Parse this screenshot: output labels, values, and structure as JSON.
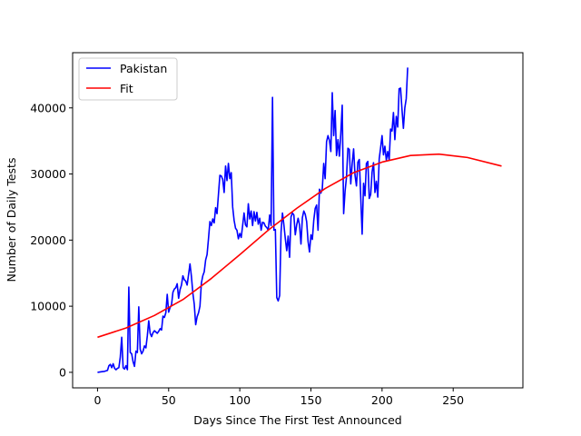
{
  "chart_data": {
    "type": "line",
    "title": "",
    "xlabel": "Days Since The First Test Announced",
    "ylabel": "Number of Daily Tests",
    "xlim": [
      -17.5,
      299
    ],
    "ylim": [
      -2350,
      48350
    ],
    "xticks": [
      0,
      50,
      100,
      150,
      200,
      250
    ],
    "yticks": [
      0,
      10000,
      20000,
      30000,
      40000
    ],
    "grid": false,
    "legend_position": "top-left",
    "series": [
      {
        "name": "Pakistan",
        "color": "#0000ff",
        "points": [
          [
            0,
            0
          ],
          [
            3,
            100
          ],
          [
            5,
            150
          ],
          [
            7,
            300
          ],
          [
            8,
            1000
          ],
          [
            9,
            1200
          ],
          [
            10,
            700
          ],
          [
            11,
            1300
          ],
          [
            12,
            600
          ],
          [
            13,
            400
          ],
          [
            14,
            600
          ],
          [
            15,
            700
          ],
          [
            16,
            2300
          ],
          [
            17,
            5300
          ],
          [
            18,
            700
          ],
          [
            19,
            500
          ],
          [
            20,
            1000
          ],
          [
            21,
            400
          ],
          [
            22,
            12900
          ],
          [
            23,
            3000
          ],
          [
            24,
            2800
          ],
          [
            25,
            1600
          ],
          [
            26,
            900
          ],
          [
            27,
            3200
          ],
          [
            28,
            3000
          ],
          [
            29,
            9900
          ],
          [
            30,
            3500
          ],
          [
            31,
            2800
          ],
          [
            32,
            3200
          ],
          [
            33,
            4000
          ],
          [
            34,
            3700
          ],
          [
            35,
            5500
          ],
          [
            36,
            7800
          ],
          [
            37,
            5900
          ],
          [
            38,
            5400
          ],
          [
            39,
            6000
          ],
          [
            40,
            6300
          ],
          [
            41,
            6100
          ],
          [
            42,
            5900
          ],
          [
            43,
            6200
          ],
          [
            44,
            6600
          ],
          [
            45,
            6400
          ],
          [
            46,
            8500
          ],
          [
            47,
            8300
          ],
          [
            48,
            9000
          ],
          [
            49,
            11800
          ],
          [
            50,
            9100
          ],
          [
            51,
            9800
          ],
          [
            52,
            10200
          ],
          [
            53,
            12100
          ],
          [
            54,
            12600
          ],
          [
            55,
            12800
          ],
          [
            56,
            13400
          ],
          [
            57,
            11200
          ],
          [
            58,
            12500
          ],
          [
            59,
            13200
          ],
          [
            60,
            14600
          ],
          [
            61,
            14000
          ],
          [
            62,
            13800
          ],
          [
            63,
            13200
          ],
          [
            64,
            14800
          ],
          [
            65,
            16400
          ],
          [
            66,
            14500
          ],
          [
            67,
            12000
          ],
          [
            68,
            10300
          ],
          [
            69,
            7200
          ],
          [
            70,
            8400
          ],
          [
            71,
            9000
          ],
          [
            72,
            10000
          ],
          [
            73,
            13500
          ],
          [
            74,
            14600
          ],
          [
            75,
            15200
          ],
          [
            76,
            17000
          ],
          [
            77,
            17800
          ],
          [
            78,
            20200
          ],
          [
            79,
            22800
          ],
          [
            80,
            22200
          ],
          [
            81,
            23200
          ],
          [
            82,
            22600
          ],
          [
            83,
            24900
          ],
          [
            84,
            24000
          ],
          [
            85,
            26900
          ],
          [
            86,
            29800
          ],
          [
            87,
            29700
          ],
          [
            88,
            29200
          ],
          [
            89,
            27200
          ],
          [
            90,
            31200
          ],
          [
            91,
            29000
          ],
          [
            92,
            31600
          ],
          [
            93,
            29300
          ],
          [
            94,
            30200
          ],
          [
            95,
            25000
          ],
          [
            96,
            23000
          ],
          [
            97,
            21800
          ],
          [
            98,
            21500
          ],
          [
            99,
            20200
          ],
          [
            100,
            21000
          ],
          [
            101,
            20400
          ],
          [
            102,
            22200
          ],
          [
            103,
            24100
          ],
          [
            104,
            22300
          ],
          [
            105,
            22000
          ],
          [
            106,
            25500
          ],
          [
            107,
            23200
          ],
          [
            108,
            24400
          ],
          [
            109,
            22200
          ],
          [
            110,
            24300
          ],
          [
            111,
            22900
          ],
          [
            112,
            24200
          ],
          [
            113,
            22400
          ],
          [
            114,
            23300
          ],
          [
            115,
            21500
          ],
          [
            116,
            22700
          ],
          [
            117,
            22600
          ],
          [
            118,
            22100
          ],
          [
            119,
            21900
          ],
          [
            120,
            21500
          ],
          [
            121,
            23800
          ],
          [
            122,
            22200
          ],
          [
            123,
            41600
          ],
          [
            124,
            21500
          ],
          [
            125,
            21600
          ],
          [
            126,
            11300
          ],
          [
            127,
            10800
          ],
          [
            128,
            11600
          ],
          [
            129,
            21200
          ],
          [
            130,
            24100
          ],
          [
            131,
            22300
          ],
          [
            132,
            20200
          ],
          [
            133,
            18400
          ],
          [
            134,
            20600
          ],
          [
            135,
            17400
          ],
          [
            136,
            23500
          ],
          [
            137,
            24100
          ],
          [
            138,
            23800
          ],
          [
            139,
            20800
          ],
          [
            140,
            22300
          ],
          [
            141,
            23300
          ],
          [
            142,
            22300
          ],
          [
            143,
            19400
          ],
          [
            144,
            23400
          ],
          [
            145,
            24400
          ],
          [
            146,
            23900
          ],
          [
            147,
            22800
          ],
          [
            148,
            19800
          ],
          [
            149,
            18200
          ],
          [
            150,
            20800
          ],
          [
            151,
            20100
          ],
          [
            152,
            23000
          ],
          [
            153,
            24800
          ],
          [
            154,
            25300
          ],
          [
            155,
            21500
          ],
          [
            156,
            27700
          ],
          [
            157,
            27100
          ],
          [
            158,
            27800
          ],
          [
            159,
            31600
          ],
          [
            160,
            29300
          ],
          [
            161,
            34900
          ],
          [
            162,
            35800
          ],
          [
            163,
            35100
          ],
          [
            164,
            33400
          ],
          [
            165,
            42300
          ],
          [
            166,
            35800
          ],
          [
            167,
            39600
          ],
          [
            168,
            32800
          ],
          [
            169,
            35200
          ],
          [
            170,
            32700
          ],
          [
            171,
            36100
          ],
          [
            172,
            40400
          ],
          [
            173,
            24000
          ],
          [
            174,
            27400
          ],
          [
            175,
            29500
          ],
          [
            176,
            33900
          ],
          [
            177,
            33700
          ],
          [
            178,
            28500
          ],
          [
            179,
            31600
          ],
          [
            180,
            33800
          ],
          [
            181,
            29800
          ],
          [
            182,
            28200
          ],
          [
            183,
            31800
          ],
          [
            184,
            32200
          ],
          [
            185,
            26600
          ],
          [
            186,
            20900
          ],
          [
            187,
            28600
          ],
          [
            188,
            26700
          ],
          [
            189,
            31600
          ],
          [
            190,
            31900
          ],
          [
            191,
            26300
          ],
          [
            192,
            26900
          ],
          [
            193,
            30300
          ],
          [
            194,
            31700
          ],
          [
            195,
            27200
          ],
          [
            196,
            28900
          ],
          [
            197,
            26500
          ],
          [
            198,
            32300
          ],
          [
            199,
            34000
          ],
          [
            200,
            35800
          ],
          [
            201,
            32900
          ],
          [
            202,
            34200
          ],
          [
            203,
            32100
          ],
          [
            204,
            33400
          ],
          [
            205,
            32100
          ],
          [
            206,
            36800
          ],
          [
            207,
            36500
          ],
          [
            208,
            39300
          ],
          [
            209,
            35200
          ],
          [
            210,
            38700
          ],
          [
            211,
            37100
          ],
          [
            212,
            42900
          ],
          [
            213,
            43000
          ],
          [
            214,
            39800
          ],
          [
            215,
            36900
          ],
          [
            216,
            40000
          ],
          [
            217,
            41400
          ],
          [
            218,
            46100
          ]
        ],
        "x_scale_factor": 1.0
      },
      {
        "name": "Fit",
        "color": "#ff0000",
        "points": [
          [
            0,
            5300
          ],
          [
            20,
            6700
          ],
          [
            40,
            8600
          ],
          [
            60,
            11000
          ],
          [
            80,
            14200
          ],
          [
            100,
            17800
          ],
          [
            120,
            21500
          ],
          [
            140,
            24800
          ],
          [
            160,
            27800
          ],
          [
            180,
            30200
          ],
          [
            200,
            31800
          ],
          [
            220,
            32800
          ],
          [
            240,
            33000
          ],
          [
            260,
            32500
          ],
          [
            284,
            31200
          ]
        ]
      }
    ]
  }
}
